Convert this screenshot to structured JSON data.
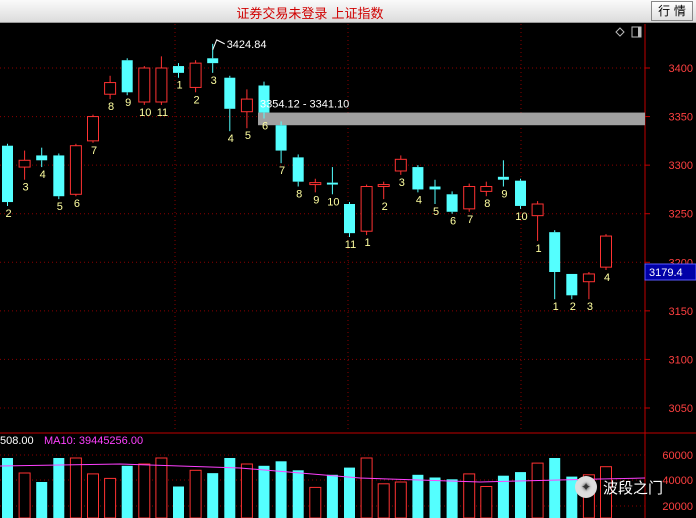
{
  "header": {
    "title": "证券交易未登录  上证指数",
    "quote_button": "行 情"
  },
  "chart_data": {
    "type": "candlestick",
    "y_axis_ticks": [
      3400,
      3350,
      3300,
      3250,
      3200,
      3150,
      3100,
      3050
    ],
    "ylim": [
      3020,
      3450
    ],
    "current_price_label": "3179.4",
    "annotations": {
      "high_label": "3424.84",
      "gap_label": "3354.12 - 3341.10",
      "gap_range": [
        3341.1,
        3354.12
      ]
    },
    "candles": [
      {
        "o": 3320,
        "c": 3262,
        "h": 3322,
        "l": 3258,
        "label": "2"
      },
      {
        "o": 3298,
        "c": 3305,
        "h": 3315,
        "l": 3285,
        "label": "3"
      },
      {
        "o": 3310,
        "c": 3305,
        "h": 3318,
        "l": 3298,
        "label": "4"
      },
      {
        "o": 3310,
        "c": 3268,
        "h": 3312,
        "l": 3265,
        "label": "5"
      },
      {
        "o": 3270,
        "c": 3320,
        "h": 3322,
        "l": 3268,
        "label": "6"
      },
      {
        "o": 3325,
        "c": 3350,
        "h": 3352,
        "l": 3323,
        "label": "7"
      },
      {
        "o": 3373,
        "c": 3385,
        "h": 3392,
        "l": 3368,
        "label": "8"
      },
      {
        "o": 3408,
        "c": 3375,
        "h": 3410,
        "l": 3372,
        "label": "9"
      },
      {
        "o": 3365,
        "c": 3400,
        "h": 3402,
        "l": 3362,
        "label": "10"
      },
      {
        "o": 3365,
        "c": 3400,
        "h": 3412,
        "l": 3362,
        "label": "11"
      },
      {
        "o": 3402,
        "c": 3395,
        "h": 3405,
        "l": 3390,
        "label": "1"
      },
      {
        "o": 3380,
        "c": 3405,
        "h": 3408,
        "l": 3375,
        "label": "2"
      },
      {
        "o": 3410,
        "c": 3405,
        "h": 3424.84,
        "l": 3395,
        "label": "3"
      },
      {
        "o": 3390,
        "c": 3358,
        "h": 3392,
        "l": 3335,
        "label": "4"
      },
      {
        "o": 3355,
        "c": 3368,
        "h": 3378,
        "l": 3338,
        "label": "5"
      },
      {
        "o": 3382,
        "c": 3354.12,
        "h": 3386,
        "l": 3348,
        "label": "6"
      },
      {
        "o": 3341.1,
        "c": 3315,
        "h": 3345,
        "l": 3302,
        "label": "7"
      },
      {
        "o": 3308,
        "c": 3283,
        "h": 3311,
        "l": 3278,
        "label": "8"
      },
      {
        "o": 3280,
        "c": 3282,
        "h": 3286,
        "l": 3272,
        "label": "9"
      },
      {
        "o": 3282,
        "c": 3280,
        "h": 3298,
        "l": 3270,
        "label": "10"
      },
      {
        "o": 3260,
        "c": 3230,
        "h": 3262,
        "l": 3226,
        "label": "11"
      },
      {
        "o": 3232,
        "c": 3278,
        "h": 3280,
        "l": 3228,
        "label": "1"
      },
      {
        "o": 3278,
        "c": 3280,
        "h": 3283,
        "l": 3265,
        "label": "2"
      },
      {
        "o": 3294,
        "c": 3306,
        "h": 3310,
        "l": 3290,
        "label": "3"
      },
      {
        "o": 3298,
        "c": 3275,
        "h": 3300,
        "l": 3272,
        "label": "4"
      },
      {
        "o": 3278,
        "c": 3275,
        "h": 3285,
        "l": 3260,
        "label": "5"
      },
      {
        "o": 3270,
        "c": 3252,
        "h": 3273,
        "l": 3250,
        "label": "6"
      },
      {
        "o": 3255,
        "c": 3278,
        "h": 3281,
        "l": 3252,
        "label": "7"
      },
      {
        "o": 3273,
        "c": 3278,
        "h": 3283,
        "l": 3268,
        "label": "8"
      },
      {
        "o": 3288,
        "c": 3285,
        "h": 3305,
        "l": 3278,
        "label": "9"
      },
      {
        "o": 3284,
        "c": 3258,
        "h": 3286,
        "l": 3255,
        "label": "10"
      },
      {
        "o": 3248,
        "c": 3260,
        "h": 3263,
        "l": 3222,
        "label": "1"
      },
      {
        "o": 3231,
        "c": 3190,
        "h": 3233,
        "l": 3162,
        "label": "1"
      },
      {
        "o": 3188,
        "c": 3166,
        "h": 3188,
        "l": 3162,
        "label": "2"
      },
      {
        "o": 3180,
        "c": 3188,
        "h": 3190,
        "l": 3162,
        "label": "3"
      },
      {
        "o": 3195,
        "c": 3227,
        "h": 3229,
        "l": 3192,
        "label": "4"
      }
    ],
    "volume_panel": {
      "label_volume": "508.00",
      "label_ma10": "MA10: 39445256.00",
      "y_axis_ticks": [
        "60000",
        "40000",
        "20000"
      ]
    }
  },
  "watermark": {
    "text": "波段之门"
  },
  "colors": {
    "up": "#ff3232",
    "down": "#54ffff",
    "grid": "#8a0000",
    "axis_text": "#ff4040",
    "gap_band": "#a0a0a0"
  }
}
